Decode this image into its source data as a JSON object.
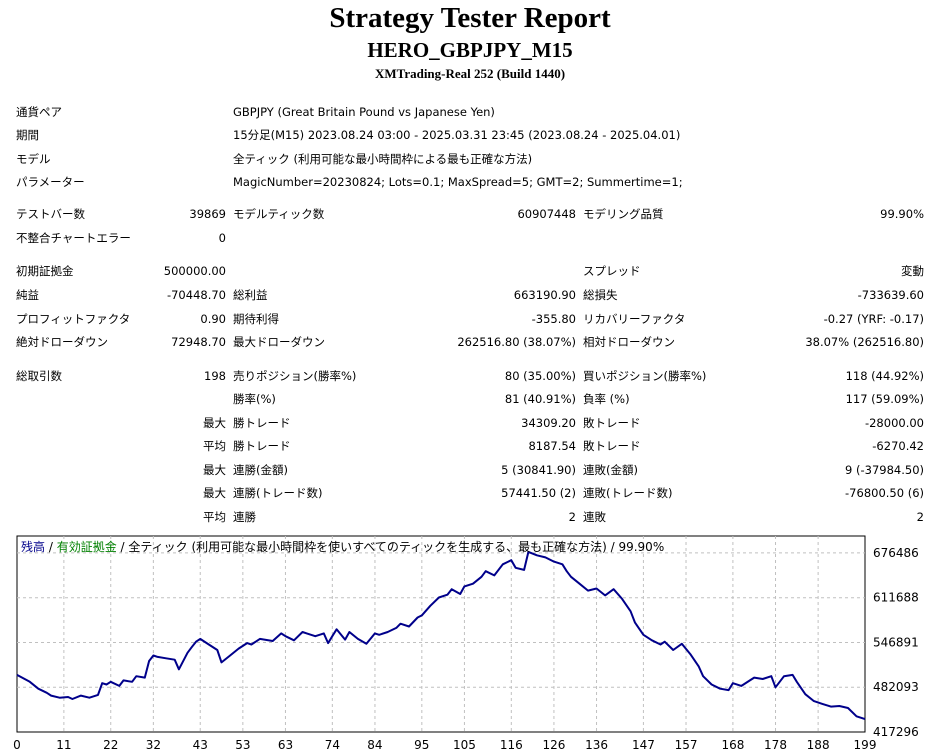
{
  "report": {
    "title": "Strategy Tester Report",
    "ea": "HERO_GBPJPY_M15",
    "server": "XMTrading-Real 252 (Build 1440)"
  },
  "info": {
    "symbol_label": "通貨ペア",
    "symbol": "GBPJPY (Great Britain Pound vs Japanese Yen)",
    "period_label": "期間",
    "period": "15分足(M15) 2023.08.24 03:00 - 2025.03.31 23:45 (2023.08.24 - 2025.04.01)",
    "model_label": "モデル",
    "model": "全ティック (利用可能な最小時間枠による最も正確な方法)",
    "params_label": "パラメーター",
    "params": "MagicNumber=20230824; Lots=0.1; MaxSpread=5; GMT=2; Summertime=1;"
  },
  "test": {
    "bars_label": "テストバー数",
    "bars": "39869",
    "ticks_label": "モデルティック数",
    "ticks": "60907448",
    "quality_label": "モデリング品質",
    "quality": "99.90%",
    "errors_label": "不整合チャートエラー",
    "errors": "0"
  },
  "results": {
    "deposit_label": "初期証拠金",
    "deposit": "500000.00",
    "spread_label": "スプレッド",
    "spread": "変動",
    "net_label": "純益",
    "net": "-70448.70",
    "gross_profit_label": "総利益",
    "gross_profit": "663190.90",
    "gross_loss_label": "総損失",
    "gross_loss": "-733639.60",
    "pf_label": "プロフィットファクタ",
    "pf": "0.90",
    "expected_label": "期待利得",
    "expected": "-355.80",
    "recovery_label": "リカバリーファクタ",
    "recovery": "-0.27 (YRF: -0.17)",
    "abs_dd_label": "絶対ドローダウン",
    "abs_dd": "72948.70",
    "max_dd_label": "最大ドローダウン",
    "max_dd": "262516.80 (38.07%)",
    "rel_dd_label": "相対ドローダウン",
    "rel_dd": "38.07% (262516.80)"
  },
  "trades": {
    "total_label": "総取引数",
    "total": "198",
    "short_label": "売りポジション(勝率%)",
    "short": "80 (35.00%)",
    "long_label": "買いポジション(勝率%)",
    "long": "118 (44.92%)",
    "win_label": "勝率(%)",
    "win": "81 (40.91%)",
    "loss_label": "負率 (%)",
    "loss": "117 (59.09%)",
    "max_word": "最大",
    "avg_word": "平均",
    "largest_win_label": "勝トレード",
    "largest_win": "34309.20",
    "largest_loss_label": "敗トレード",
    "largest_loss": "-28000.00",
    "avg_win_label": "勝トレード",
    "avg_win": "8187.54",
    "avg_loss_label": "敗トレード",
    "avg_loss": "-6270.42",
    "max_cons_wins_label": "連勝(金額)",
    "max_cons_wins": "5 (30841.90)",
    "max_cons_losses_label": "連敗(金額)",
    "max_cons_losses": "9 (-37984.50)",
    "max_cons_profit_label": "連勝(トレード数)",
    "max_cons_profit": "57441.50 (2)",
    "max_cons_loss_label": "連敗(トレード数)",
    "max_cons_loss": "-76800.50 (6)",
    "avg_cons_wins_label": "連勝",
    "avg_cons_wins": "2",
    "avg_cons_losses_label": "連敗",
    "avg_cons_losses": "2"
  },
  "chart_data": {
    "type": "line",
    "legend": {
      "balance": "残高",
      "sep1": " / ",
      "equity": "有効証拠金",
      "sep2": " / ",
      "model": "全ティック (利用可能な最小時間枠を使いすべてのティックを生成する、最も正確な方法) / 99.90%"
    },
    "colors": {
      "balance": "#00008b",
      "equity": "#008000",
      "grid": "#c0c0c0"
    },
    "ylim": [
      417296,
      701000
    ],
    "y_ticks": [
      676486,
      611688,
      546891,
      482093,
      417296
    ],
    "x_ticks": [
      0,
      11,
      22,
      32,
      43,
      53,
      63,
      74,
      84,
      95,
      105,
      116,
      126,
      136,
      147,
      157,
      168,
      178,
      188,
      199
    ],
    "series": [
      {
        "name": "残高",
        "x": [
          0,
          3,
          5,
          7,
          8,
          10,
          12,
          13,
          15,
          17,
          19,
          20,
          21,
          22,
          24,
          25,
          27,
          28,
          30,
          31,
          32,
          33,
          35,
          37,
          38,
          40,
          41,
          42,
          43,
          45,
          47,
          48,
          50,
          52,
          54,
          55,
          57,
          60,
          62,
          63,
          65,
          67,
          68,
          70,
          72,
          73,
          74,
          75,
          77,
          78,
          80,
          82,
          84,
          85,
          87,
          89,
          90,
          92,
          94,
          95,
          97,
          99,
          101,
          102,
          104,
          105,
          107,
          109,
          110,
          112,
          114,
          116,
          117,
          119,
          120,
          122,
          124,
          126,
          128,
          129,
          130,
          132,
          134,
          136,
          138,
          140,
          142,
          144,
          145,
          147,
          149,
          151,
          152,
          154,
          156,
          158,
          160,
          161,
          163,
          165,
          167,
          168,
          170,
          172,
          173,
          175,
          177,
          178,
          180,
          182,
          183,
          185,
          187,
          189,
          191,
          193,
          195,
          197,
          199
        ],
        "y": [
          500000,
          490000,
          480000,
          474000,
          470000,
          467000,
          468000,
          465000,
          470000,
          467000,
          471000,
          488000,
          486000,
          490000,
          484000,
          492000,
          490000,
          498000,
          496000,
          520000,
          528000,
          526000,
          524000,
          522000,
          508000,
          532000,
          540000,
          548000,
          552000,
          544000,
          536000,
          518000,
          528000,
          538000,
          546000,
          544000,
          552000,
          549000,
          560000,
          556000,
          550000,
          562000,
          560000,
          556000,
          560000,
          546000,
          556000,
          566000,
          551000,
          562000,
          552000,
          545000,
          560000,
          558000,
          562000,
          568000,
          574000,
          570000,
          583000,
          586000,
          600000,
          612000,
          616000,
          624000,
          617000,
          628000,
          632000,
          642000,
          650000,
          644000,
          660000,
          666000,
          655000,
          652000,
          678000,
          673000,
          670000,
          664000,
          660000,
          650000,
          642000,
          632000,
          622000,
          625000,
          615000,
          624000,
          610000,
          592000,
          576000,
          558000,
          550000,
          544000,
          548000,
          536000,
          545000,
          530000,
          512000,
          498000,
          486000,
          480000,
          478000,
          488000,
          484000,
          492000,
          496000,
          494000,
          498000,
          482000,
          498000,
          500000,
          490000,
          472000,
          462000,
          458000,
          454000,
          455000,
          452000,
          440000,
          436000
        ]
      }
    ]
  }
}
